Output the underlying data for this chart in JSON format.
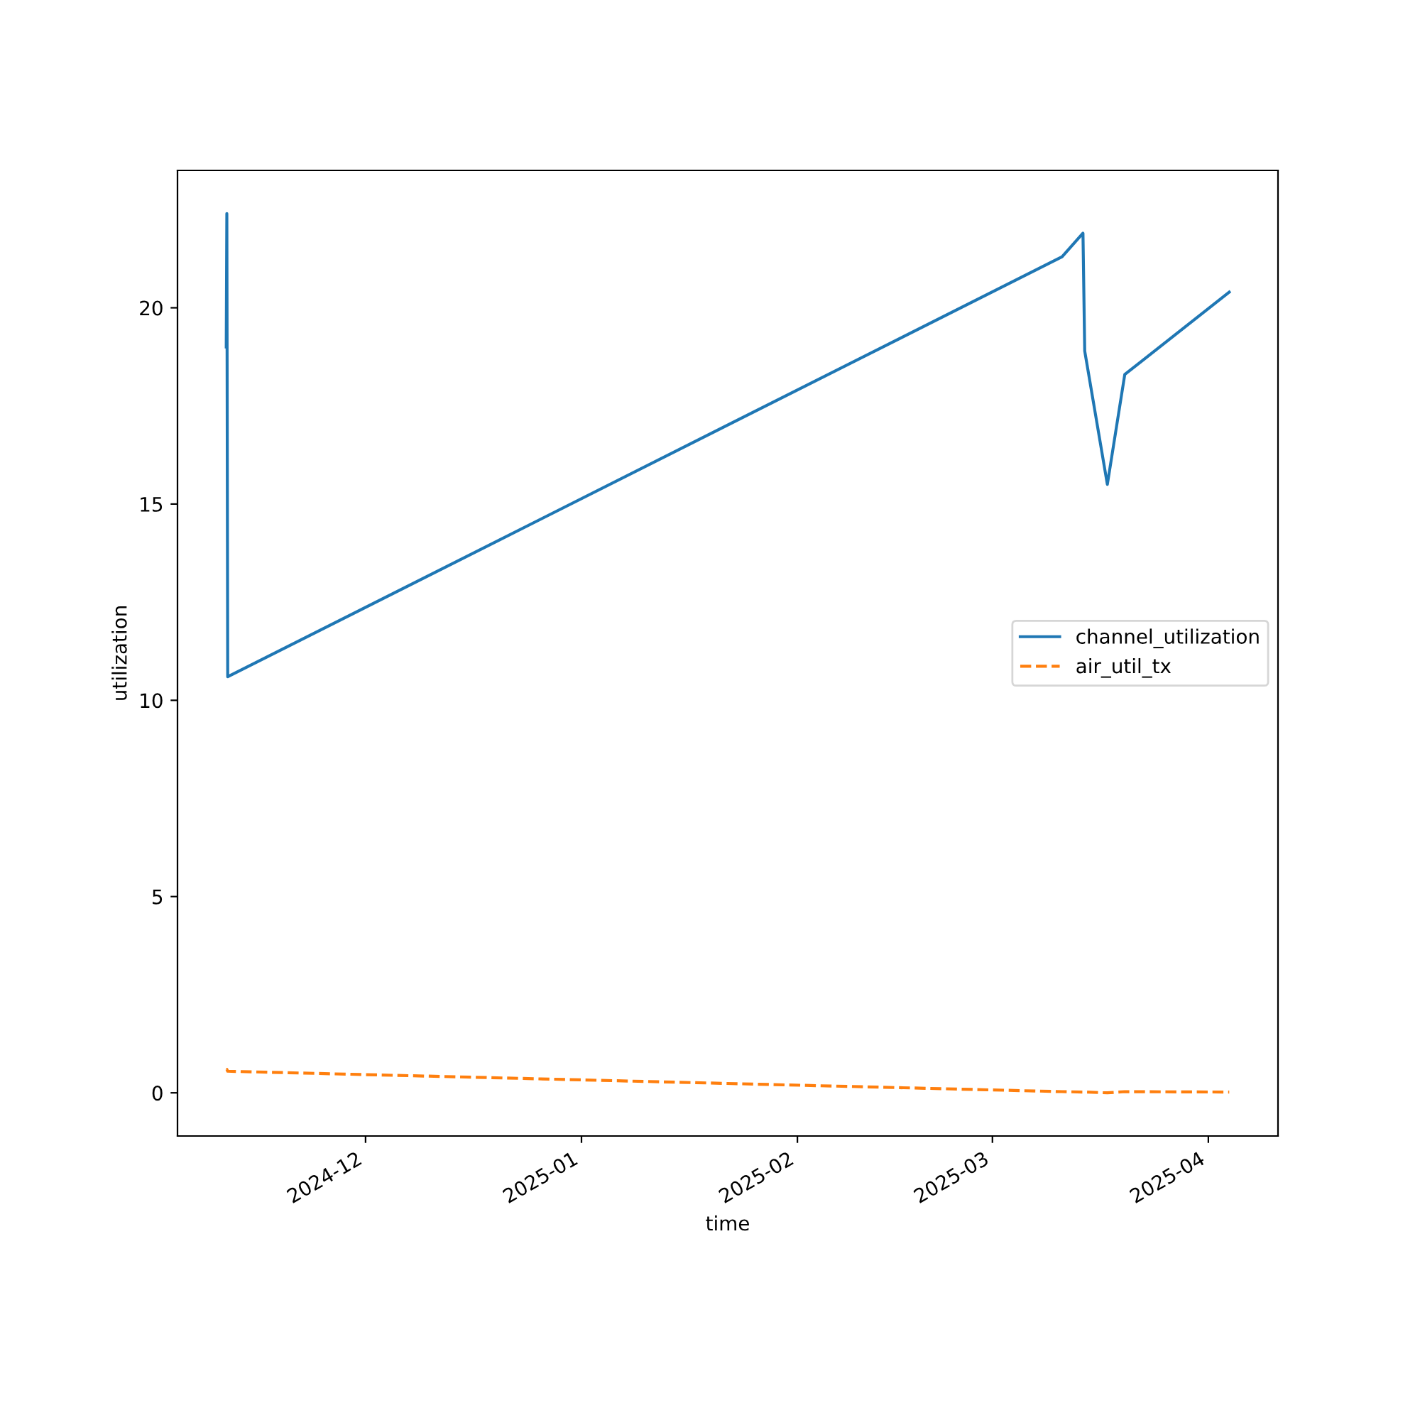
{
  "chart_data": {
    "type": "line",
    "xlabel": "time",
    "ylabel": "utilization",
    "x": [
      "2024-11-11T00:00",
      "2024-11-11T02:00",
      "2024-11-11T05:00",
      "2025-03-11T00:00",
      "2025-03-14T00:00",
      "2025-03-14T06:00",
      "2025-03-17T12:00",
      "2025-03-20T00:00",
      "2025-04-04T00:00"
    ],
    "series": [
      {
        "name": "channel_utilization",
        "color": "#1f77b4",
        "line_style": "solid",
        "values": [
          19.0,
          22.4,
          10.6,
          21.3,
          21.9,
          18.9,
          15.5,
          18.3,
          20.4
        ]
      },
      {
        "name": "air_util_tx",
        "color": "#ff7f0e",
        "line_style": "dashed",
        "values": [
          0.6,
          0.6,
          0.55,
          0.03,
          0.02,
          0.02,
          0.0,
          0.03,
          0.02
        ]
      }
    ],
    "xlim": [
      "2024-11-04",
      "2025-04-11"
    ],
    "xticks": [
      {
        "value": "2024-12-01",
        "label": "2024-12"
      },
      {
        "value": "2025-01-01",
        "label": "2025-01"
      },
      {
        "value": "2025-02-01",
        "label": "2025-02"
      },
      {
        "value": "2025-03-01",
        "label": "2025-03"
      },
      {
        "value": "2025-04-01",
        "label": "2025-04"
      }
    ],
    "ylim": [
      -1.1,
      23.5
    ],
    "yticks": [
      0,
      5,
      10,
      15,
      20
    ],
    "grid": false,
    "legend": "center right"
  }
}
